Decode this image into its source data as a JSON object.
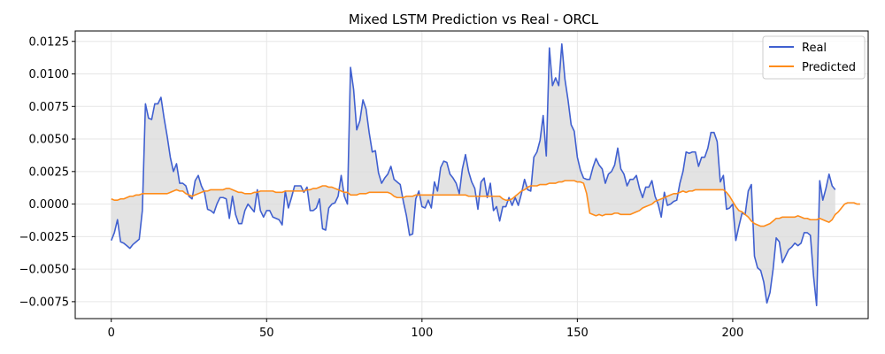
{
  "chart_data": {
    "type": "line",
    "title": "Mixed LSTM Prediction vs Real - ORCL",
    "xlabel": "",
    "ylabel": "",
    "xlim": [
      -11.6,
      243.6
    ],
    "ylim": [
      -0.0088,
      0.0133
    ],
    "x_ticks": [
      0,
      50,
      100,
      150,
      200
    ],
    "x_tick_labels": [
      "0",
      "50",
      "100",
      "150",
      "200"
    ],
    "y_ticks": [
      -0.0075,
      -0.005,
      -0.0025,
      0.0,
      0.0025,
      0.005,
      0.0075,
      0.01,
      0.0125
    ],
    "y_tick_labels": [
      "−0.0075",
      "−0.0050",
      "−0.0025",
      "0.0000",
      "0.0025",
      "0.0050",
      "0.0075",
      "0.0100",
      "0.0125"
    ],
    "grid": true,
    "legend_position": "top-right",
    "fill_between": true,
    "colors": {
      "real": "#4060d0",
      "predicted": "#ff8c1a",
      "fill": "#d9d9d9"
    },
    "series": [
      {
        "name": "Real",
        "values": [
          -0.0028,
          -0.0022,
          -0.0012,
          -0.0029,
          -0.003,
          -0.0032,
          -0.0034,
          -0.0031,
          -0.0029,
          -0.0027,
          -0.0005,
          0.0077,
          0.0066,
          0.0065,
          0.0077,
          0.0077,
          0.0082,
          0.0066,
          0.0052,
          0.0036,
          0.0025,
          0.0031,
          0.0016,
          0.0016,
          0.0014,
          0.0006,
          0.0004,
          0.0018,
          0.0022,
          0.0014,
          0.0009,
          -0.0004,
          -0.0005,
          -0.0007,
          0.0,
          0.0005,
          0.0005,
          0.0004,
          -0.0011,
          0.0006,
          -0.0008,
          -0.0015,
          -0.0015,
          -0.0005,
          0.0,
          -0.0003,
          -0.0006,
          0.0011,
          -0.0005,
          -0.001,
          -0.0005,
          -0.0005,
          -0.001,
          -0.0011,
          -0.0012,
          -0.0016,
          0.001,
          -0.0003,
          0.0005,
          0.0014,
          0.0014,
          0.0014,
          0.0009,
          0.0013,
          -0.0005,
          -0.0005,
          -0.0003,
          0.0004,
          -0.0019,
          -0.002,
          -0.0003,
          0.0,
          0.0001,
          0.0006,
          0.0022,
          0.0006,
          0.0,
          0.0105,
          0.0088,
          0.0057,
          0.0064,
          0.008,
          0.0073,
          0.0055,
          0.004,
          0.0041,
          0.0024,
          0.0016,
          0.002,
          0.0023,
          0.0029,
          0.0019,
          0.0017,
          0.0015,
          0.0002,
          -0.0009,
          -0.0024,
          -0.0023,
          0.0004,
          0.001,
          -0.0002,
          -0.0003,
          0.0003,
          -0.0003,
          0.0017,
          0.001,
          0.0028,
          0.0033,
          0.0032,
          0.0023,
          0.002,
          0.0016,
          0.0008,
          0.0027,
          0.0038,
          0.0025,
          0.0017,
          0.0012,
          -0.0004,
          0.0017,
          0.002,
          0.0005,
          0.0016,
          -0.0005,
          -0.0002,
          -0.0013,
          -0.0002,
          -0.0002,
          0.0005,
          -0.0001,
          0.0005,
          -0.0001,
          0.0008,
          0.0019,
          0.0011,
          0.001,
          0.0036,
          0.004,
          0.0049,
          0.0068,
          0.0037,
          0.012,
          0.0091,
          0.0097,
          0.0091,
          0.0123,
          0.0096,
          0.008,
          0.0061,
          0.0056,
          0.0036,
          0.0026,
          0.002,
          0.0019,
          0.0019,
          0.0028,
          0.0035,
          0.003,
          0.0027,
          0.0016,
          0.0023,
          0.0025,
          0.003,
          0.0043,
          0.0027,
          0.0023,
          0.0014,
          0.0019,
          0.0019,
          0.0022,
          0.0012,
          0.0005,
          0.0013,
          0.0013,
          0.0018,
          0.0006,
          0.0,
          -0.001,
          0.0009,
          -0.0001,
          0.0,
          0.0002,
          0.0003,
          0.0016,
          0.0025,
          0.004,
          0.0039,
          0.004,
          0.004,
          0.0029,
          0.0036,
          0.0036,
          0.0043,
          0.0055,
          0.0055,
          0.0048,
          0.0017,
          0.0022,
          -0.0004,
          -0.0003,
          0.0,
          -0.0028,
          -0.0017,
          -0.0007,
          -0.0008,
          0.001,
          0.0015,
          -0.004,
          -0.0049,
          -0.0051,
          -0.006,
          -0.0076,
          -0.0068,
          -0.005,
          -0.0026,
          -0.0029,
          -0.0045,
          -0.004,
          -0.0035,
          -0.0033,
          -0.003,
          -0.0032,
          -0.003,
          -0.0022,
          -0.0022,
          -0.0024,
          -0.0055,
          -0.0078,
          0.0018,
          0.0003,
          0.0012,
          0.0023,
          0.0014,
          0.0011
        ]
      },
      {
        "name": "Predicted",
        "values": [
          0.0004,
          0.0003,
          0.0003,
          0.0004,
          0.0004,
          0.0005,
          0.0006,
          0.0006,
          0.0007,
          0.0007,
          0.0008,
          0.0008,
          0.0008,
          0.0008,
          0.0008,
          0.0008,
          0.0008,
          0.0008,
          0.0008,
          0.0009,
          0.001,
          0.0011,
          0.001,
          0.001,
          0.0008,
          0.0007,
          0.0006,
          0.0007,
          0.0008,
          0.0009,
          0.001,
          0.001,
          0.0011,
          0.0011,
          0.0011,
          0.0011,
          0.0011,
          0.0012,
          0.0012,
          0.0011,
          0.001,
          0.0009,
          0.0009,
          0.0008,
          0.0008,
          0.0008,
          0.0009,
          0.0009,
          0.001,
          0.001,
          0.001,
          0.001,
          0.001,
          0.0009,
          0.0009,
          0.0009,
          0.001,
          0.001,
          0.001,
          0.001,
          0.001,
          0.001,
          0.001,
          0.0011,
          0.0011,
          0.0012,
          0.0012,
          0.0013,
          0.0014,
          0.0014,
          0.0013,
          0.0013,
          0.0012,
          0.0011,
          0.001,
          0.0009,
          0.0009,
          0.0007,
          0.0007,
          0.0007,
          0.0008,
          0.0008,
          0.0008,
          0.0009,
          0.0009,
          0.0009,
          0.0009,
          0.0009,
          0.0009,
          0.0009,
          0.0008,
          0.0006,
          0.0005,
          0.0005,
          0.0005,
          0.0006,
          0.0006,
          0.0006,
          0.0007,
          0.0007,
          0.0007,
          0.0007,
          0.0007,
          0.0007,
          0.0007,
          0.0007,
          0.0007,
          0.0007,
          0.0007,
          0.0007,
          0.0007,
          0.0007,
          0.0007,
          0.0007,
          0.0007,
          0.0006,
          0.0006,
          0.0006,
          0.0006,
          0.0006,
          0.0006,
          0.0006,
          0.0006,
          0.0006,
          0.0006,
          0.0006,
          0.0004,
          0.0003,
          0.0003,
          0.0004,
          0.0006,
          0.0008,
          0.001,
          0.0011,
          0.0013,
          0.0014,
          0.0014,
          0.0014,
          0.0015,
          0.0015,
          0.0015,
          0.0016,
          0.0016,
          0.0016,
          0.0017,
          0.0017,
          0.0018,
          0.0018,
          0.0018,
          0.0018,
          0.0017,
          0.0017,
          0.0016,
          0.0008,
          -0.0007,
          -0.0008,
          -0.0009,
          -0.0008,
          -0.0009,
          -0.0008,
          -0.0008,
          -0.0008,
          -0.0007,
          -0.0007,
          -0.0008,
          -0.0008,
          -0.0008,
          -0.0008,
          -0.0007,
          -0.0006,
          -0.0005,
          -0.0003,
          -0.0002,
          -0.0001,
          0.0,
          0.0002,
          0.0003,
          0.0004,
          0.0005,
          0.0006,
          0.0007,
          0.0008,
          0.0008,
          0.0009,
          0.001,
          0.0009,
          0.001,
          0.001,
          0.0011,
          0.0011,
          0.0011,
          0.0011,
          0.0011,
          0.0011,
          0.0011,
          0.0011,
          0.0011,
          0.0011,
          0.0009,
          0.0006,
          0.0002,
          -0.0002,
          -0.0005,
          -0.0006,
          -0.0008,
          -0.001,
          -0.0013,
          -0.0015,
          -0.0016,
          -0.0017,
          -0.0017,
          -0.0016,
          -0.0015,
          -0.0013,
          -0.0011,
          -0.0011,
          -0.001,
          -0.001,
          -0.001,
          -0.001,
          -0.001,
          -0.0009,
          -0.001,
          -0.0011,
          -0.0011,
          -0.0012,
          -0.0012,
          -0.0012,
          -0.0011,
          -0.0012,
          -0.0013,
          -0.0014,
          -0.0012,
          -0.0008,
          -0.0006,
          -0.0003,
          0.0,
          0.0001,
          0.0001,
          0.0001,
          0.0,
          0.0
        ]
      }
    ]
  }
}
